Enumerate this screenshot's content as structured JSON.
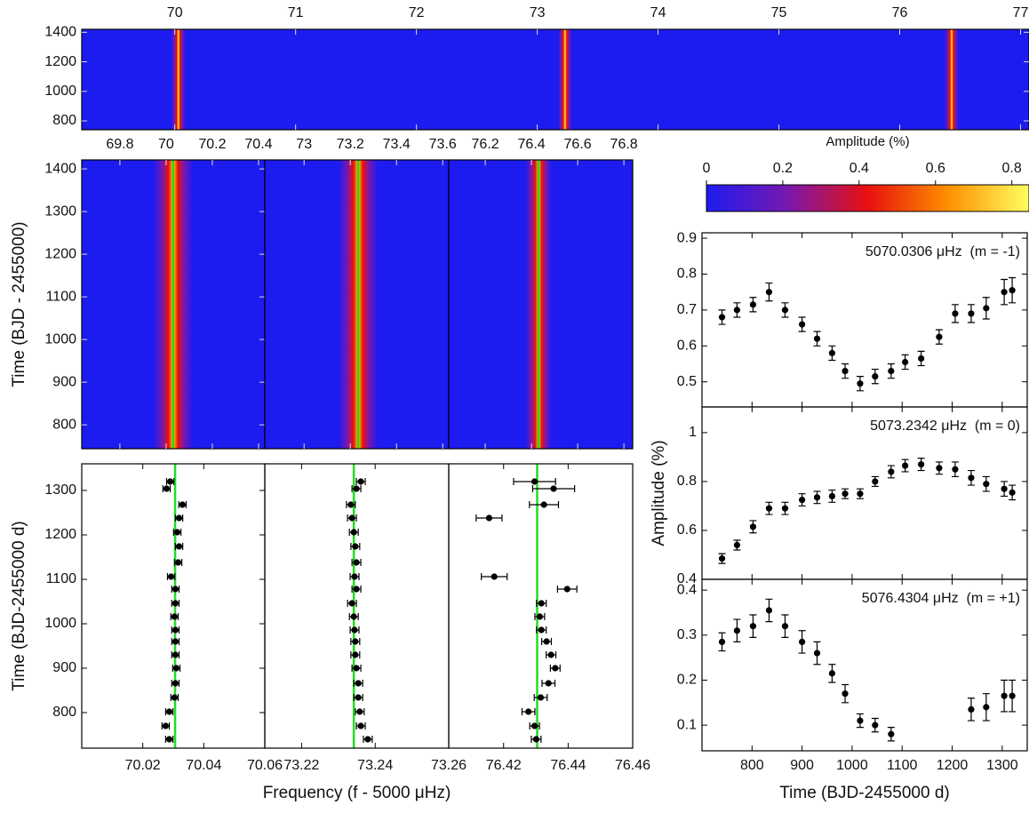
{
  "chart_data": [
    {
      "type": "heatmap",
      "xlim": [
        69.23,
        77.07
      ],
      "xticks": [
        70,
        71,
        72,
        73,
        74,
        75,
        76,
        77
      ],
      "ylim": [
        740,
        1420
      ],
      "yticks": [
        800,
        1000,
        1200,
        1400
      ],
      "ridges": [
        70.03,
        73.23,
        76.43
      ]
    },
    {
      "type": "heatmap",
      "ylabel": "Time (BJD - 2455000)",
      "xlim": [
        69.635,
        70.427
      ],
      "xticks": [
        69.8,
        70,
        70.2,
        70.4
      ],
      "ylim": [
        744,
        1421
      ],
      "yticks": [
        800,
        900,
        1000,
        1100,
        1200,
        1300,
        1400
      ],
      "ridges": [
        70.0306
      ],
      "line": 70.0306,
      "line_color": "#22dd22"
    },
    {
      "type": "heatmap",
      "xlim": [
        72.83,
        73.626
      ],
      "xticks": [
        73,
        73.2,
        73.4,
        73.6
      ],
      "ylim": [
        744,
        1421
      ],
      "ridges": [
        73.2342
      ],
      "line": 73.2342,
      "line_color": "#22dd22"
    },
    {
      "type": "heatmap",
      "xlim": [
        76.042,
        76.838
      ],
      "xticks": [
        76.2,
        76.4,
        76.6,
        76.8
      ],
      "ylim": [
        744,
        1421
      ],
      "ridges": [
        76.4304
      ],
      "line": 76.4304,
      "line_color": "#22dd22"
    },
    {
      "type": "scatter",
      "orient": "horizontal",
      "ylabel": "Time (BJD-2455000 d)",
      "xlim": [
        70.0,
        70.06
      ],
      "xticks": [
        70.02,
        70.04,
        70.06
      ],
      "ylim": [
        720,
        1360
      ],
      "yticks": [
        800,
        900,
        1000,
        1100,
        1200,
        1300
      ],
      "color": "#000000",
      "line": 70.0306,
      "line_color": "#22dd22",
      "times": [
        740,
        770,
        802,
        834,
        866,
        900,
        930,
        960,
        986,
        1016,
        1046,
        1078,
        1106,
        1138,
        1174,
        1206,
        1238,
        1268,
        1304,
        1320
      ],
      "values": [
        70.0287,
        70.0275,
        70.0287,
        70.0304,
        70.0307,
        70.031,
        70.0307,
        70.0307,
        70.0307,
        70.0304,
        70.0307,
        70.0307,
        70.0293,
        70.0316,
        70.0319,
        70.0313,
        70.0319,
        70.033,
        70.0278,
        70.029
      ],
      "errors": [
        0.0012,
        0.0012,
        0.0012,
        0.0012,
        0.0012,
        0.0012,
        0.0012,
        0.0012,
        0.0012,
        0.0012,
        0.0012,
        0.0012,
        0.0012,
        0.0012,
        0.0012,
        0.0012,
        0.0012,
        0.0012,
        0.0012,
        0.0012
      ]
    },
    {
      "type": "scatter",
      "orient": "horizontal",
      "xlabel": "Frequency (f - 5000 μHz)",
      "xlim": [
        73.21,
        73.26
      ],
      "xticks": [
        73.22,
        73.24,
        73.26
      ],
      "ylim": [
        720,
        1360
      ],
      "color": "#000000",
      "line": 73.2342,
      "line_color": "#22dd22",
      "times": [
        740,
        770,
        802,
        834,
        866,
        900,
        930,
        960,
        986,
        1016,
        1046,
        1078,
        1106,
        1138,
        1174,
        1206,
        1238,
        1268,
        1304,
        1320
      ],
      "values": [
        73.238,
        73.2361,
        73.2358,
        73.2354,
        73.2354,
        73.2349,
        73.2346,
        73.2346,
        73.2344,
        73.2342,
        73.2337,
        73.2349,
        73.2344,
        73.2349,
        73.2346,
        73.2342,
        73.2337,
        73.2334,
        73.2349,
        73.2361
      ],
      "errors": [
        0.0012,
        0.0012,
        0.0012,
        0.0012,
        0.0012,
        0.0012,
        0.0012,
        0.0012,
        0.0012,
        0.0012,
        0.0012,
        0.0012,
        0.0012,
        0.0012,
        0.0012,
        0.0012,
        0.0012,
        0.0012,
        0.0012,
        0.0012
      ]
    },
    {
      "type": "scatter",
      "orient": "horizontal",
      "xlim": [
        76.403,
        76.46
      ],
      "xticks": [
        76.42,
        76.44,
        76.46
      ],
      "ylim": [
        720,
        1360
      ],
      "color": "#000000",
      "line": 76.4304,
      "line_color": "#22dd22",
      "times": [
        740,
        770,
        802,
        834,
        866,
        900,
        930,
        960,
        986,
        1016,
        1046,
        1078,
        1106,
        1138,
        1174,
        1206,
        1238,
        1268,
        1304,
        1320
      ],
      "values": [
        76.4301,
        76.4296,
        76.4277,
        76.4315,
        76.4339,
        76.436,
        76.4347,
        76.4333,
        76.4317,
        76.4312,
        76.4317,
        76.4397,
        76.4171,
        null,
        null,
        null,
        76.4155,
        76.4325,
        76.4355,
        76.4296
      ],
      "errors": [
        0.0015,
        0.0015,
        0.002,
        0.002,
        0.002,
        0.0015,
        0.0015,
        0.0015,
        0.0015,
        0.0015,
        0.0015,
        0.003,
        0.004,
        null,
        null,
        null,
        0.004,
        0.0045,
        0.0065,
        0.0065
      ]
    },
    {
      "type": "colorbar",
      "title": "Amplitude (%)",
      "xlim": [
        0,
        0.845
      ],
      "xticks": [
        0,
        0.2,
        0.4,
        0.6,
        0.8
      ],
      "colormap": [
        "#1c1cf0",
        "#7818b0",
        "#e81010",
        "#ff9000",
        "#ffff60"
      ]
    },
    {
      "type": "scatter",
      "annotation": "5070.0306 μHz  (m = -1)",
      "xlim": [
        700,
        1350
      ],
      "xticks": [
        800,
        900,
        1000,
        1100,
        1200,
        1300
      ],
      "ylim": [
        0.43,
        0.915
      ],
      "yticks": [
        0.5,
        0.6,
        0.7,
        0.8,
        0.9
      ],
      "color": "#000000",
      "x": [
        740,
        770,
        802,
        834,
        866,
        900,
        930,
        960,
        986,
        1016,
        1046,
        1078,
        1106,
        1138,
        1174,
        1206,
        1238,
        1268,
        1304,
        1320
      ],
      "values": [
        0.68,
        0.7,
        0.715,
        0.75,
        0.7,
        0.66,
        0.62,
        0.58,
        0.53,
        0.495,
        0.515,
        0.53,
        0.555,
        0.565,
        0.625,
        0.69,
        0.69,
        0.705,
        0.75,
        0.755
      ],
      "errors": [
        0.02,
        0.02,
        0.02,
        0.025,
        0.02,
        0.02,
        0.02,
        0.02,
        0.02,
        0.02,
        0.02,
        0.02,
        0.02,
        0.02,
        0.02,
        0.025,
        0.025,
        0.03,
        0.035,
        0.035
      ]
    },
    {
      "type": "scatter",
      "annotation": "5073.2342 μHz  (m = 0)",
      "ylabel": "Amplitude (%)",
      "xlim": [
        700,
        1350
      ],
      "xticks": [
        800,
        900,
        1000,
        1100,
        1200,
        1300
      ],
      "ylim": [
        0.4,
        1.105
      ],
      "yticks": [
        0.4,
        0.6,
        0.8,
        1
      ],
      "color": "#000000",
      "x": [
        740,
        770,
        802,
        834,
        866,
        900,
        930,
        960,
        986,
        1016,
        1046,
        1078,
        1106,
        1138,
        1174,
        1206,
        1238,
        1268,
        1304,
        1320
      ],
      "values": [
        0.485,
        0.54,
        0.615,
        0.69,
        0.69,
        0.725,
        0.735,
        0.74,
        0.75,
        0.75,
        0.8,
        0.84,
        0.865,
        0.87,
        0.855,
        0.85,
        0.815,
        0.79,
        0.77,
        0.755
      ],
      "errors": [
        0.02,
        0.02,
        0.025,
        0.025,
        0.025,
        0.025,
        0.025,
        0.025,
        0.02,
        0.02,
        0.02,
        0.025,
        0.025,
        0.025,
        0.025,
        0.03,
        0.03,
        0.03,
        0.03,
        0.03
      ]
    },
    {
      "type": "scatter",
      "annotation": "5076.4304 μHz  (m = +1)",
      "xlabel": "Time (BJD-2455000 d)",
      "xlim": [
        700,
        1350
      ],
      "xticks": [
        800,
        900,
        1000,
        1100,
        1200,
        1300
      ],
      "ylim": [
        0.043,
        0.424
      ],
      "yticks": [
        0.1,
        0.2,
        0.3,
        0.4
      ],
      "color": "#000000",
      "x": [
        740,
        770,
        802,
        834,
        866,
        900,
        930,
        960,
        986,
        1016,
        1046,
        1078,
        1106,
        1138,
        1174,
        1206,
        1238,
        1268,
        1304,
        1320
      ],
      "values": [
        0.285,
        0.31,
        0.32,
        0.355,
        0.32,
        0.285,
        0.26,
        0.215,
        0.17,
        0.11,
        0.1,
        0.08,
        null,
        null,
        null,
        null,
        0.135,
        0.14,
        0.165,
        0.165
      ],
      "errors": [
        0.02,
        0.025,
        0.025,
        0.025,
        0.025,
        0.025,
        0.025,
        0.02,
        0.02,
        0.015,
        0.015,
        0.015,
        null,
        null,
        null,
        null,
        0.025,
        0.03,
        0.035,
        0.035
      ]
    }
  ]
}
